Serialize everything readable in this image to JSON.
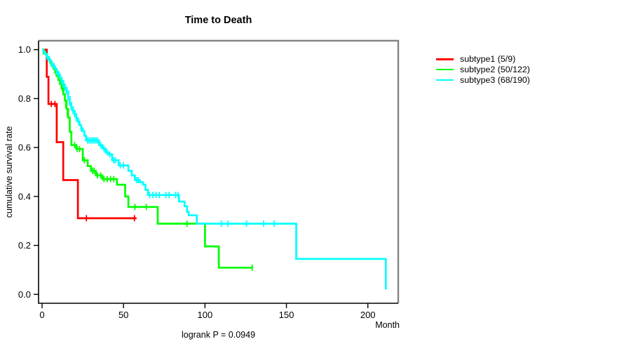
{
  "page": {
    "background": "#ffffff",
    "text_color": "#000000"
  },
  "chart_data": {
    "type": "line",
    "subtype": "kaplan-meier-step-curves",
    "title": "Time to Death",
    "xlabel": "Month",
    "ylabel": "cumulative survival rate",
    "footnote": "logrank P = 0.0949",
    "xlim": [
      0,
      220
    ],
    "ylim": [
      0.0,
      1.0
    ],
    "xticks": [
      0,
      50,
      100,
      150,
      200
    ],
    "yticks": [
      0.0,
      0.2,
      0.4,
      0.6,
      0.8,
      1.0
    ],
    "grid": false,
    "legend_position": "right-outside",
    "axis_color": "#000000",
    "frame_shadow_color": "#848484",
    "series": [
      {
        "label": "subtype1 (5/9)",
        "name": "subtype1",
        "events": 5,
        "n": 9,
        "color": "#ff0000",
        "steps": [
          [
            0,
            1.0
          ],
          [
            2.9,
            0.889
          ],
          [
            3.9,
            0.778
          ],
          [
            9,
            0.622
          ],
          [
            13,
            0.467
          ],
          [
            22,
            0.311
          ],
          [
            58,
            0.311
          ]
        ],
        "censors": [
          [
            5.7,
            0.778
          ],
          [
            7.9,
            0.778
          ],
          [
            27.2,
            0.311
          ],
          [
            56.7,
            0.311
          ]
        ]
      },
      {
        "label": "subtype2 (50/122)",
        "name": "subtype2",
        "events": 50,
        "n": 122,
        "color": "#00ff00",
        "steps": [
          [
            0,
            1.0
          ],
          [
            1,
            0.992
          ],
          [
            2,
            0.983
          ],
          [
            3,
            0.971
          ],
          [
            4,
            0.959
          ],
          [
            5,
            0.947
          ],
          [
            6,
            0.934
          ],
          [
            7,
            0.921
          ],
          [
            8,
            0.907
          ],
          [
            9,
            0.892
          ],
          [
            10,
            0.876
          ],
          [
            11,
            0.859
          ],
          [
            12,
            0.841
          ],
          [
            13,
            0.818
          ],
          [
            14,
            0.792
          ],
          [
            15,
            0.758
          ],
          [
            16,
            0.722
          ],
          [
            17,
            0.664
          ],
          [
            18,
            0.61
          ],
          [
            21,
            0.594
          ],
          [
            25,
            0.548
          ],
          [
            28,
            0.524
          ],
          [
            30,
            0.505
          ],
          [
            33,
            0.486
          ],
          [
            37,
            0.471
          ],
          [
            46,
            0.448
          ],
          [
            51,
            0.4
          ],
          [
            53,
            0.357
          ],
          [
            71,
            0.289
          ],
          [
            100,
            0.196
          ],
          [
            108.5,
            0.109
          ],
          [
            129.5,
            0.109
          ]
        ],
        "censors": [
          [
            0.7,
            0.992
          ],
          [
            5.5,
            0.947
          ],
          [
            8.5,
            0.907
          ],
          [
            12.5,
            0.841
          ],
          [
            14.5,
            0.775
          ],
          [
            15.5,
            0.74
          ],
          [
            20,
            0.61
          ],
          [
            21.5,
            0.594
          ],
          [
            23,
            0.594
          ],
          [
            26,
            0.548
          ],
          [
            31,
            0.505
          ],
          [
            32,
            0.505
          ],
          [
            34,
            0.486
          ],
          [
            36,
            0.486
          ],
          [
            38,
            0.471
          ],
          [
            40,
            0.471
          ],
          [
            42,
            0.471
          ],
          [
            44,
            0.471
          ],
          [
            57,
            0.357
          ],
          [
            64,
            0.357
          ],
          [
            89,
            0.289
          ],
          [
            129,
            0.109
          ]
        ]
      },
      {
        "label": "subtype3 (68/190)",
        "name": "subtype3",
        "events": 68,
        "n": 190,
        "color": "#00ffff",
        "steps": [
          [
            0,
            1.0
          ],
          [
            1,
            0.99
          ],
          [
            2,
            0.981
          ],
          [
            3,
            0.971
          ],
          [
            4,
            0.961
          ],
          [
            5,
            0.951
          ],
          [
            6,
            0.941
          ],
          [
            7,
            0.931
          ],
          [
            8,
            0.921
          ],
          [
            9,
            0.909
          ],
          [
            10,
            0.897
          ],
          [
            11,
            0.885
          ],
          [
            12,
            0.872
          ],
          [
            13,
            0.858
          ],
          [
            14,
            0.844
          ],
          [
            15,
            0.83
          ],
          [
            16,
            0.806
          ],
          [
            17,
            0.782
          ],
          [
            18,
            0.764
          ],
          [
            19,
            0.75
          ],
          [
            20,
            0.736
          ],
          [
            21,
            0.72
          ],
          [
            22,
            0.705
          ],
          [
            23,
            0.691
          ],
          [
            24,
            0.678
          ],
          [
            25,
            0.667
          ],
          [
            26,
            0.648
          ],
          [
            27,
            0.629
          ],
          [
            35,
            0.61
          ],
          [
            37,
            0.596
          ],
          [
            39,
            0.58
          ],
          [
            41,
            0.572
          ],
          [
            43,
            0.548
          ],
          [
            47,
            0.527
          ],
          [
            53,
            0.505
          ],
          [
            55,
            0.486
          ],
          [
            57,
            0.467
          ],
          [
            60,
            0.458
          ],
          [
            62,
            0.448
          ],
          [
            63.5,
            0.427
          ],
          [
            65,
            0.406
          ],
          [
            84,
            0.379
          ],
          [
            87.5,
            0.36
          ],
          [
            89,
            0.337
          ],
          [
            90,
            0.323
          ],
          [
            95,
            0.289
          ],
          [
            156,
            0.145
          ],
          [
            211,
            0.02
          ]
        ],
        "censors": [
          [
            3,
            0.971
          ],
          [
            4.5,
            0.961
          ],
          [
            6,
            0.941
          ],
          [
            7.5,
            0.931
          ],
          [
            9,
            0.909
          ],
          [
            10.5,
            0.897
          ],
          [
            12,
            0.872
          ],
          [
            13,
            0.858
          ],
          [
            14,
            0.844
          ],
          [
            15,
            0.83
          ],
          [
            16,
            0.806
          ],
          [
            17,
            0.782
          ],
          [
            18,
            0.764
          ],
          [
            19,
            0.75
          ],
          [
            20,
            0.736
          ],
          [
            21,
            0.72
          ],
          [
            22.5,
            0.705
          ],
          [
            24,
            0.678
          ],
          [
            28,
            0.629
          ],
          [
            29,
            0.629
          ],
          [
            30,
            0.629
          ],
          [
            31,
            0.629
          ],
          [
            32,
            0.629
          ],
          [
            33,
            0.629
          ],
          [
            34,
            0.629
          ],
          [
            36,
            0.61
          ],
          [
            38,
            0.596
          ],
          [
            40,
            0.58
          ],
          [
            41.5,
            0.572
          ],
          [
            44,
            0.548
          ],
          [
            45,
            0.548
          ],
          [
            48,
            0.527
          ],
          [
            50,
            0.527
          ],
          [
            58,
            0.467
          ],
          [
            59,
            0.467
          ],
          [
            66,
            0.406
          ],
          [
            68,
            0.406
          ],
          [
            70,
            0.406
          ],
          [
            72,
            0.406
          ],
          [
            76,
            0.406
          ],
          [
            78,
            0.406
          ],
          [
            82,
            0.406
          ],
          [
            83.5,
            0.406
          ],
          [
            110,
            0.289
          ],
          [
            114,
            0.289
          ],
          [
            125.5,
            0.289
          ],
          [
            136,
            0.289
          ],
          [
            142.5,
            0.289
          ]
        ]
      }
    ]
  }
}
